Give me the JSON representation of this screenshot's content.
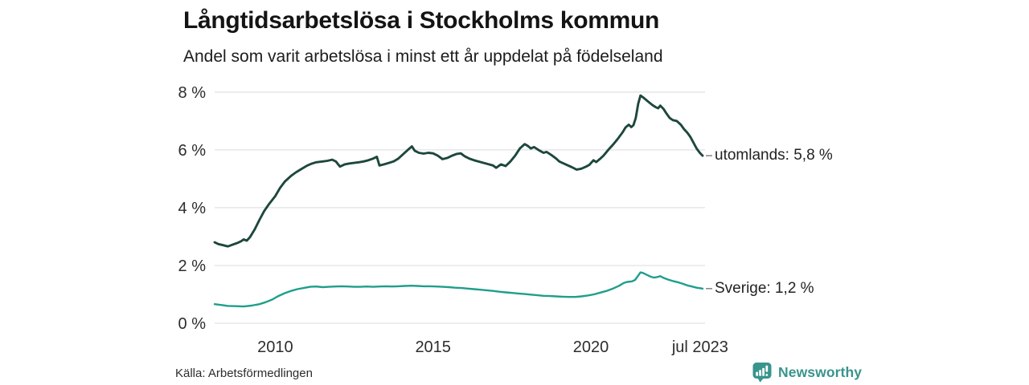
{
  "header": {
    "title": "Långtidsarbetslösa i Stockholms kommun",
    "subtitle": "Andel som varit arbetslösa i minst ett år uppdelat på födelseland"
  },
  "footer": {
    "source": "Källa: Arbetsförmedlingen",
    "brand": "Newsworthy"
  },
  "colors": {
    "utomlands": "#1d473d",
    "sverige": "#1f9e8b",
    "grid": "#e2e2e2",
    "axis_text": "#2d2d2d",
    "label_text": "#222222",
    "label_dash": "#8c8c8c",
    "brand": "#38948c",
    "background": "#ffffff"
  },
  "chart_data": {
    "type": "line",
    "title": "Långtidsarbetslösa i Stockholms kommun",
    "subtitle": "Andel som varit arbetslösa i minst ett år uppdelat på födelseland",
    "xlabel": "",
    "ylabel": "",
    "grid": "horizontal-only",
    "legend_position": "end-of-line-labels",
    "xlim": [
      2008.08,
      2023.54
    ],
    "ylim": [
      0,
      8.3
    ],
    "y_ticks": [
      {
        "value": 0,
        "label": "0 %"
      },
      {
        "value": 2,
        "label": "2 %"
      },
      {
        "value": 4,
        "label": "4 %"
      },
      {
        "value": 6,
        "label": "6 %"
      },
      {
        "value": 8,
        "label": "8 %"
      }
    ],
    "x_ticks": [
      {
        "value": 2010,
        "label": "2010"
      },
      {
        "value": 2015,
        "label": "2015"
      },
      {
        "value": 2020,
        "label": "2020"
      },
      {
        "value": 2023.46,
        "label": "jul 2023"
      }
    ],
    "series": [
      {
        "name": "utomlands",
        "end_label": "utomlands: 5,8 %",
        "end_value_text": "5,8 %",
        "color": "#1d473d",
        "x": [
          2008.08,
          2008.2,
          2008.35,
          2008.5,
          2008.65,
          2008.8,
          2008.92,
          2009.0,
          2009.1,
          2009.2,
          2009.35,
          2009.5,
          2009.65,
          2009.8,
          2010.0,
          2010.15,
          2010.3,
          2010.5,
          2010.65,
          2010.8,
          2011.0,
          2011.15,
          2011.3,
          2011.5,
          2011.65,
          2011.8,
          2011.92,
          2012.05,
          2012.2,
          2012.35,
          2012.5,
          2012.65,
          2012.8,
          2012.95,
          2013.1,
          2013.22,
          2013.3,
          2013.45,
          2013.6,
          2013.75,
          2013.9,
          2014.05,
          2014.2,
          2014.33,
          2014.42,
          2014.55,
          2014.7,
          2014.85,
          2015.0,
          2015.15,
          2015.3,
          2015.45,
          2015.6,
          2015.75,
          2015.88,
          2016.0,
          2016.15,
          2016.3,
          2016.5,
          2016.7,
          2016.9,
          2017.0,
          2017.15,
          2017.3,
          2017.45,
          2017.6,
          2017.75,
          2017.9,
          2018.0,
          2018.1,
          2018.2,
          2018.35,
          2018.5,
          2018.6,
          2018.75,
          2018.9,
          2019.0,
          2019.2,
          2019.4,
          2019.55,
          2019.7,
          2019.85,
          2019.95,
          2020.08,
          2020.17,
          2020.28,
          2020.4,
          2020.55,
          2020.7,
          2020.85,
          2021.0,
          2021.1,
          2021.2,
          2021.28,
          2021.35,
          2021.42,
          2021.5,
          2021.57,
          2021.65,
          2021.75,
          2021.85,
          2021.95,
          2022.05,
          2022.13,
          2022.2,
          2022.3,
          2022.4,
          2022.5,
          2022.6,
          2022.72,
          2022.85,
          2022.95,
          2023.05,
          2023.15,
          2023.25,
          2023.35,
          2023.45,
          2023.54
        ],
        "values": [
          2.8,
          2.74,
          2.7,
          2.66,
          2.72,
          2.78,
          2.84,
          2.9,
          2.86,
          2.98,
          3.25,
          3.58,
          3.88,
          4.12,
          4.4,
          4.68,
          4.9,
          5.1,
          5.22,
          5.32,
          5.45,
          5.52,
          5.57,
          5.6,
          5.62,
          5.66,
          5.6,
          5.42,
          5.5,
          5.53,
          5.55,
          5.57,
          5.6,
          5.64,
          5.7,
          5.76,
          5.46,
          5.5,
          5.55,
          5.6,
          5.7,
          5.85,
          6.0,
          6.12,
          5.97,
          5.9,
          5.87,
          5.9,
          5.88,
          5.8,
          5.68,
          5.72,
          5.8,
          5.86,
          5.88,
          5.78,
          5.7,
          5.64,
          5.58,
          5.52,
          5.46,
          5.38,
          5.5,
          5.44,
          5.6,
          5.8,
          6.05,
          6.2,
          6.14,
          6.05,
          6.1,
          5.99,
          5.9,
          5.93,
          5.82,
          5.7,
          5.6,
          5.5,
          5.4,
          5.32,
          5.35,
          5.42,
          5.48,
          5.64,
          5.58,
          5.68,
          5.8,
          6.0,
          6.18,
          6.38,
          6.6,
          6.78,
          6.87,
          6.79,
          6.86,
          7.1,
          7.6,
          7.88,
          7.82,
          7.73,
          7.64,
          7.55,
          7.48,
          7.44,
          7.53,
          7.42,
          7.25,
          7.1,
          7.03,
          7.0,
          6.87,
          6.72,
          6.6,
          6.45,
          6.25,
          6.05,
          5.9,
          5.8
        ]
      },
      {
        "name": "Sverige",
        "end_label": "Sverige: 1,2 %",
        "end_value_text": "1,2 %",
        "color": "#1f9e8b",
        "x": [
          2008.08,
          2008.3,
          2008.5,
          2008.75,
          2009.0,
          2009.25,
          2009.5,
          2009.7,
          2009.9,
          2010.1,
          2010.3,
          2010.5,
          2010.7,
          2010.9,
          2011.1,
          2011.3,
          2011.5,
          2011.7,
          2011.9,
          2012.1,
          2012.3,
          2012.5,
          2012.7,
          2012.9,
          2013.1,
          2013.3,
          2013.5,
          2013.7,
          2013.9,
          2014.1,
          2014.3,
          2014.5,
          2014.7,
          2014.9,
          2015.1,
          2015.3,
          2015.5,
          2015.7,
          2015.9,
          2016.1,
          2016.3,
          2016.5,
          2016.7,
          2016.9,
          2017.1,
          2017.3,
          2017.5,
          2017.7,
          2017.9,
          2018.1,
          2018.3,
          2018.5,
          2018.7,
          2018.9,
          2019.1,
          2019.3,
          2019.5,
          2019.7,
          2019.9,
          2020.1,
          2020.3,
          2020.5,
          2020.7,
          2020.9,
          2021.05,
          2021.15,
          2021.3,
          2021.4,
          2021.5,
          2021.57,
          2021.65,
          2021.8,
          2021.9,
          2022.0,
          2022.1,
          2022.2,
          2022.3,
          2022.45,
          2022.6,
          2022.75,
          2022.9,
          2023.05,
          2023.2,
          2023.35,
          2023.54
        ],
        "values": [
          0.66,
          0.63,
          0.6,
          0.59,
          0.58,
          0.61,
          0.66,
          0.73,
          0.82,
          0.94,
          1.04,
          1.12,
          1.18,
          1.22,
          1.26,
          1.27,
          1.25,
          1.26,
          1.27,
          1.28,
          1.27,
          1.26,
          1.26,
          1.27,
          1.26,
          1.27,
          1.28,
          1.27,
          1.28,
          1.29,
          1.3,
          1.29,
          1.28,
          1.28,
          1.27,
          1.26,
          1.25,
          1.23,
          1.22,
          1.2,
          1.18,
          1.16,
          1.14,
          1.12,
          1.09,
          1.07,
          1.05,
          1.03,
          1.01,
          0.99,
          0.97,
          0.95,
          0.94,
          0.93,
          0.92,
          0.91,
          0.91,
          0.93,
          0.96,
          1.0,
          1.06,
          1.12,
          1.2,
          1.3,
          1.4,
          1.43,
          1.45,
          1.5,
          1.65,
          1.76,
          1.74,
          1.66,
          1.61,
          1.58,
          1.6,
          1.63,
          1.57,
          1.51,
          1.46,
          1.42,
          1.37,
          1.31,
          1.27,
          1.23,
          1.2
        ]
      }
    ]
  }
}
